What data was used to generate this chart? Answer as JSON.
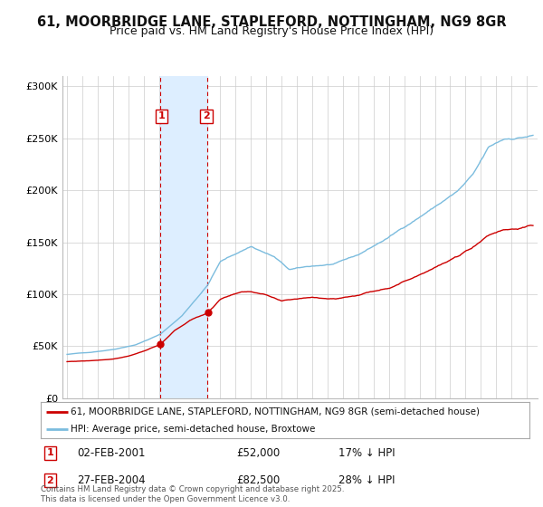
{
  "title1": "61, MOORBRIDGE LANE, STAPLEFORD, NOTTINGHAM, NG9 8GR",
  "title2": "Price paid vs. HM Land Registry's House Price Index (HPI)",
  "ylim": [
    0,
    310000
  ],
  "yticks": [
    0,
    50000,
    100000,
    150000,
    200000,
    250000,
    300000
  ],
  "ytick_labels": [
    "£0",
    "£50K",
    "£100K",
    "£150K",
    "£200K",
    "£250K",
    "£300K"
  ],
  "hpi_color": "#7bbcde",
  "price_color": "#cc0000",
  "shaded_color": "#ddeeff",
  "marker1_year": 2001.08,
  "marker1_price": 52000,
  "marker2_year": 2004.16,
  "marker2_price": 82500,
  "legend_line1": "61, MOORBRIDGE LANE, STAPLEFORD, NOTTINGHAM, NG9 8GR (semi-detached house)",
  "legend_line2": "HPI: Average price, semi-detached house, Broxtowe",
  "annotation1_date": "02-FEB-2001",
  "annotation1_price": "£52,000",
  "annotation1_hpi": "17% ↓ HPI",
  "annotation2_date": "27-FEB-2004",
  "annotation2_price": "£82,500",
  "annotation2_hpi": "28% ↓ HPI",
  "footnote": "Contains HM Land Registry data © Crown copyright and database right 2025.\nThis data is licensed under the Open Government Licence v3.0.",
  "background_color": "#ffffff",
  "grid_color": "#cccccc"
}
